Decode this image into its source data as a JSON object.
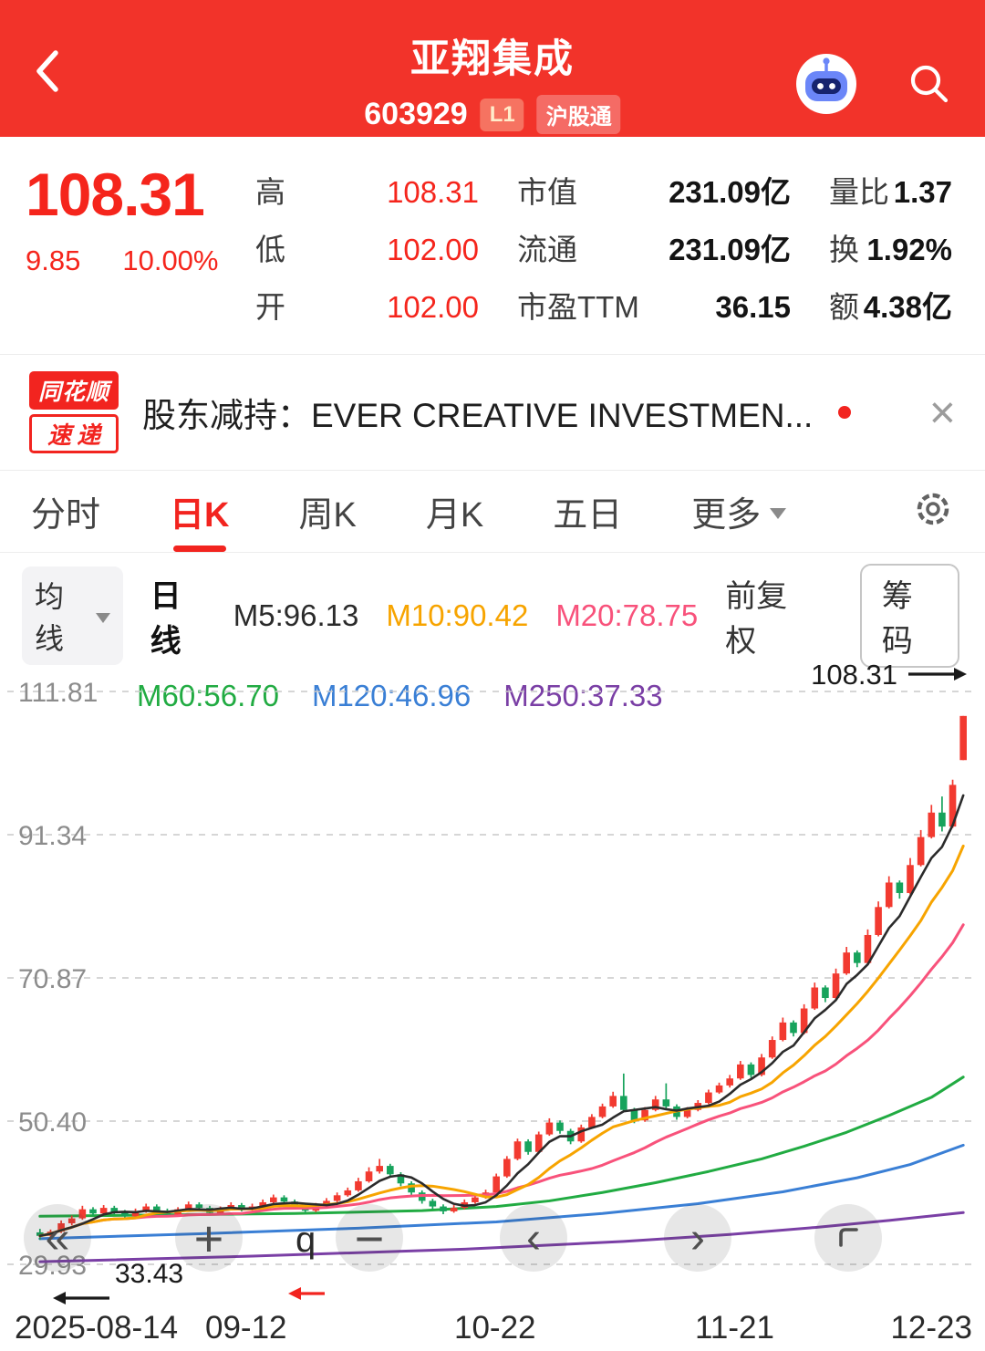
{
  "theme": {
    "brand_red": "#f2332a",
    "price_red": "#f5251c",
    "up_red": "#f23a30",
    "down_green": "#17a35c"
  },
  "header": {
    "title": "亚翔集成",
    "code": "603929",
    "badge_l1": "L1",
    "badge_hgt": "沪股通"
  },
  "quote": {
    "price": "108.31",
    "change": "9.85",
    "change_pct": "10.00%",
    "col_hlo": [
      {
        "label": "高",
        "value": "108.31"
      },
      {
        "label": "低",
        "value": "102.00"
      },
      {
        "label": "开",
        "value": "102.00"
      }
    ],
    "col_cap": [
      {
        "label": "市值",
        "value": "231.09亿"
      },
      {
        "label": "流通",
        "value": "231.09亿"
      },
      {
        "label": "市盈TTM",
        "value": "36.15"
      }
    ],
    "col_vol": [
      {
        "label": "量比",
        "value": "1.37"
      },
      {
        "label": "换",
        "value": "1.92%"
      },
      {
        "label": "额",
        "value": "4.38亿"
      }
    ]
  },
  "news": {
    "logo_top": "同花顺",
    "logo_bottom": "速递",
    "text": "股东减持：EVER CREATIVE INVESTMEN...",
    "close": "×"
  },
  "tabs": {
    "items": [
      "分时",
      "日K",
      "周K",
      "月K",
      "五日",
      "更多"
    ],
    "active": "日K"
  },
  "ma_panel": {
    "dropdown": "均线",
    "period": "日线",
    "row1": [
      {
        "label": "M5:96.13",
        "color": "#2b2b2b"
      },
      {
        "label": "M10:90.42",
        "color": "#f7a400"
      },
      {
        "label": "M20:78.75",
        "color": "#f8527b"
      }
    ],
    "row2": [
      {
        "label": "M60:56.70",
        "color": "#21ab42"
      },
      {
        "label": "M120:46.96",
        "color": "#3a7fd5"
      },
      {
        "label": "M250:37.33",
        "color": "#7a3fa5"
      }
    ],
    "fuquan": "前复权",
    "chips": "筹码"
  },
  "chart_buttons": {
    "rewind": "«",
    "zoom_in": "+",
    "zoom_out": "−",
    "prev": "‹",
    "next": "›"
  },
  "chart_data": {
    "type": "candlestick",
    "title": "亚翔集成 603929 日K",
    "y_ticks": [
      111.81,
      91.34,
      70.87,
      50.4,
      29.93
    ],
    "y_range": [
      29.93,
      111.81
    ],
    "x_ticks": [
      "2025-08-14",
      "09-12",
      "10-22",
      "11-21",
      "12-23"
    ],
    "max_label": "108.31",
    "min_label": "33.43",
    "zoom_hint": "q",
    "legend": [
      "M5",
      "M10",
      "M20",
      "M60",
      "M120",
      "M250"
    ],
    "colors": {
      "up": "#f23a30",
      "down": "#17a35c",
      "grid": "#c9c9c9",
      "ma5": "#2b2b2b",
      "ma10": "#f7a400",
      "ma20": "#f8527b",
      "ma60": "#21ab42",
      "ma120": "#3a7fd5",
      "ma250": "#7a3fa5"
    },
    "candles": [
      [
        34.5,
        35.0,
        33.43,
        34.0
      ],
      [
        34.0,
        34.9,
        33.8,
        34.6
      ],
      [
        34.6,
        36.2,
        34.4,
        35.8
      ],
      [
        35.8,
        36.9,
        35.5,
        36.5
      ],
      [
        36.5,
        38.3,
        36.3,
        37.8
      ],
      [
        37.8,
        38.1,
        36.9,
        37.2
      ],
      [
        37.2,
        38.4,
        37.0,
        38.0
      ],
      [
        38.0,
        38.3,
        37.1,
        37.4
      ],
      [
        37.4,
        37.7,
        36.5,
        36.8
      ],
      [
        36.8,
        37.9,
        36.6,
        37.5
      ],
      [
        37.5,
        38.6,
        37.3,
        38.2
      ],
      [
        38.2,
        38.5,
        37.3,
        37.6
      ],
      [
        37.6,
        37.9,
        36.7,
        37.0
      ],
      [
        37.0,
        38.1,
        36.8,
        37.8
      ],
      [
        37.8,
        38.9,
        37.6,
        38.5
      ],
      [
        38.5,
        38.8,
        37.7,
        38.0
      ],
      [
        38.0,
        38.3,
        37.0,
        37.3
      ],
      [
        37.3,
        38.2,
        37.1,
        37.9
      ],
      [
        37.9,
        38.8,
        37.7,
        38.4
      ],
      [
        38.4,
        38.7,
        37.5,
        37.8
      ],
      [
        37.8,
        38.6,
        37.6,
        38.2
      ],
      [
        38.2,
        39.2,
        38.0,
        38.8
      ],
      [
        38.8,
        39.9,
        38.6,
        39.5
      ],
      [
        39.5,
        39.8,
        38.6,
        38.9
      ],
      [
        38.9,
        39.2,
        37.9,
        38.2
      ],
      [
        38.2,
        38.5,
        37.3,
        37.6
      ],
      [
        37.6,
        38.7,
        37.4,
        38.3
      ],
      [
        38.3,
        39.4,
        38.1,
        39.0
      ],
      [
        39.0,
        40.2,
        38.8,
        39.8
      ],
      [
        39.8,
        40.9,
        39.6,
        40.5
      ],
      [
        40.5,
        42.3,
        40.3,
        41.8
      ],
      [
        41.8,
        43.8,
        41.6,
        43.2
      ],
      [
        43.2,
        45.0,
        42.9,
        44.0
      ],
      [
        44.0,
        44.3,
        42.4,
        42.8
      ],
      [
        42.8,
        43.1,
        41.1,
        41.5
      ],
      [
        41.5,
        41.8,
        39.8,
        40.2
      ],
      [
        40.2,
        40.5,
        38.6,
        39.0
      ],
      [
        39.0,
        39.3,
        37.8,
        38.2
      ],
      [
        38.2,
        38.5,
        37.1,
        37.5
      ],
      [
        37.5,
        38.4,
        37.3,
        38.0
      ],
      [
        38.0,
        39.2,
        37.8,
        38.8
      ],
      [
        38.8,
        39.9,
        38.6,
        39.5
      ],
      [
        39.5,
        40.6,
        39.3,
        40.2
      ],
      [
        40.2,
        42.9,
        40.0,
        42.5
      ],
      [
        42.5,
        45.4,
        42.3,
        45.0
      ],
      [
        45.0,
        47.9,
        44.8,
        47.5
      ],
      [
        47.5,
        47.8,
        45.6,
        46.0
      ],
      [
        46.0,
        48.9,
        45.8,
        48.5
      ],
      [
        48.5,
        50.8,
        48.3,
        50.2
      ],
      [
        50.2,
        50.5,
        48.6,
        49.0
      ],
      [
        49.0,
        49.3,
        47.1,
        47.5
      ],
      [
        47.5,
        49.9,
        47.3,
        49.5
      ],
      [
        49.5,
        51.4,
        49.3,
        51.0
      ],
      [
        51.0,
        52.9,
        50.8,
        52.5
      ],
      [
        52.5,
        54.6,
        52.3,
        54.0
      ],
      [
        54.0,
        57.2,
        51.8,
        52.0
      ],
      [
        52.0,
        52.3,
        50.1,
        50.5
      ],
      [
        50.5,
        52.4,
        50.3,
        52.0
      ],
      [
        52.0,
        54.0,
        51.8,
        53.5
      ],
      [
        53.5,
        55.8,
        52.2,
        52.5
      ],
      [
        52.5,
        52.8,
        50.6,
        51.0
      ],
      [
        51.0,
        52.4,
        50.8,
        52.0
      ],
      [
        52.0,
        53.4,
        51.8,
        53.0
      ],
      [
        53.0,
        54.9,
        52.8,
        54.5
      ],
      [
        54.5,
        55.9,
        54.3,
        55.5
      ],
      [
        55.5,
        57.0,
        55.2,
        56.5
      ],
      [
        56.5,
        59.0,
        56.3,
        58.5
      ],
      [
        58.5,
        58.8,
        56.6,
        57.0
      ],
      [
        57.0,
        60.0,
        56.8,
        59.5
      ],
      [
        59.5,
        62.5,
        59.3,
        62.0
      ],
      [
        62.0,
        65.2,
        61.8,
        64.5
      ],
      [
        64.5,
        64.8,
        62.5,
        63.0
      ],
      [
        63.0,
        67.1,
        62.8,
        66.5
      ],
      [
        66.5,
        70.2,
        66.3,
        69.5
      ],
      [
        69.5,
        69.8,
        67.4,
        68.0
      ],
      [
        68.0,
        72.2,
        67.8,
        71.5
      ],
      [
        71.5,
        75.3,
        71.3,
        74.5
      ],
      [
        74.5,
        74.8,
        72.4,
        73.0
      ],
      [
        73.0,
        77.8,
        72.8,
        77.0
      ],
      [
        77.0,
        81.8,
        76.8,
        81.0
      ],
      [
        81.0,
        85.4,
        80.8,
        84.5
      ],
      [
        84.5,
        84.8,
        82.2,
        83.0
      ],
      [
        83.0,
        88.0,
        82.8,
        87.0
      ],
      [
        87.0,
        92.0,
        86.8,
        91.0
      ],
      [
        91.0,
        95.6,
        90.8,
        94.5
      ],
      [
        94.5,
        96.8,
        91.8,
        92.5
      ],
      [
        92.5,
        99.2,
        92.3,
        98.46
      ],
      [
        102.0,
        108.31,
        102.0,
        108.31
      ]
    ],
    "ma_overlays": {
      "ma60": [
        [
          0,
          36.8
        ],
        [
          12,
          37.0
        ],
        [
          24,
          37.2
        ],
        [
          36,
          37.6
        ],
        [
          43,
          38.2
        ],
        [
          48,
          39.0
        ],
        [
          53,
          40.2
        ],
        [
          58,
          41.6
        ],
        [
          63,
          43.2
        ],
        [
          68,
          45.0
        ],
        [
          72,
          46.8
        ],
        [
          76,
          48.8
        ],
        [
          80,
          51.2
        ],
        [
          84,
          53.8
        ],
        [
          87,
          56.7
        ]
      ],
      "ma120": [
        [
          0,
          33.6
        ],
        [
          15,
          34.3
        ],
        [
          30,
          35.1
        ],
        [
          43,
          36.0
        ],
        [
          53,
          37.2
        ],
        [
          62,
          38.6
        ],
        [
          70,
          40.3
        ],
        [
          77,
          42.3
        ],
        [
          82,
          44.2
        ],
        [
          87,
          46.96
        ]
      ],
      "ma250": [
        [
          0,
          30.3
        ],
        [
          20,
          31.1
        ],
        [
          40,
          32.1
        ],
        [
          55,
          33.2
        ],
        [
          65,
          34.2
        ],
        [
          73,
          35.2
        ],
        [
          80,
          36.2
        ],
        [
          87,
          37.33
        ]
      ]
    }
  }
}
